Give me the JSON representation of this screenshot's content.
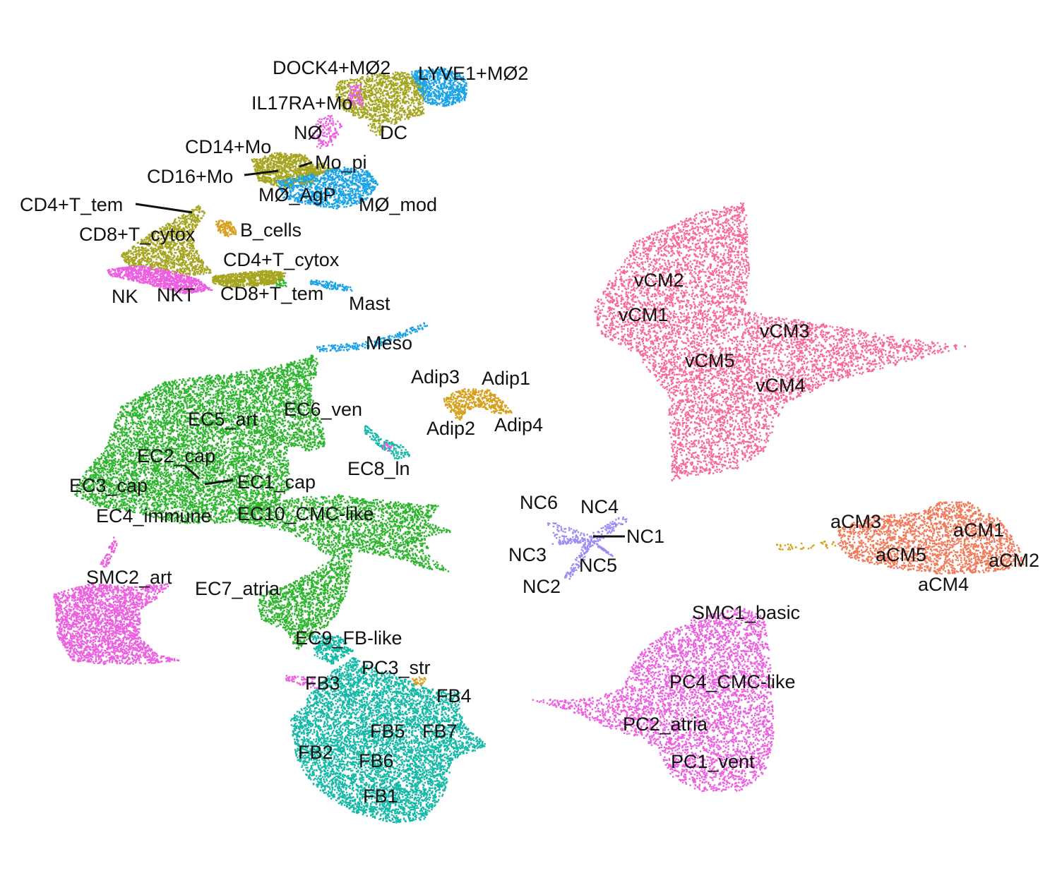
{
  "chart_data": {
    "type": "scatter",
    "title": "",
    "xlabel": "",
    "ylabel": "",
    "legend": "none",
    "axes": "hidden",
    "grid": false,
    "colors": {
      "pink": "#f8679a",
      "orange": "#f07a5a",
      "gold": "#d7a01c",
      "olive": "#a5a520",
      "green": "#2db52d",
      "teal": "#14b8a6",
      "blue": "#1aa3e6",
      "lavender": "#9d8cf2",
      "magenta": "#ec5fe0",
      "pinkmagenta": "#f064d6"
    },
    "clusters": [
      {
        "name": "vCM1",
        "color": "pink"
      },
      {
        "name": "vCM2",
        "color": "pink"
      },
      {
        "name": "vCM3",
        "color": "pink"
      },
      {
        "name": "vCM4",
        "color": "pink"
      },
      {
        "name": "vCM5",
        "color": "pink"
      },
      {
        "name": "aCM1",
        "color": "orange"
      },
      {
        "name": "aCM2",
        "color": "orange"
      },
      {
        "name": "aCM3",
        "color": "orange"
      },
      {
        "name": "aCM4",
        "color": "orange"
      },
      {
        "name": "aCM5",
        "color": "orange"
      },
      {
        "name": "Adip1",
        "color": "gold"
      },
      {
        "name": "Adip2",
        "color": "gold"
      },
      {
        "name": "Adip3",
        "color": "gold"
      },
      {
        "name": "Adip4",
        "color": "gold"
      },
      {
        "name": "NC1",
        "color": "lavender"
      },
      {
        "name": "NC2",
        "color": "lavender"
      },
      {
        "name": "NC3",
        "color": "lavender"
      },
      {
        "name": "NC4",
        "color": "lavender"
      },
      {
        "name": "NC5",
        "color": "lavender"
      },
      {
        "name": "NC6",
        "color": "lavender"
      },
      {
        "name": "SMC1_basic",
        "color": "magenta"
      },
      {
        "name": "PC1_vent",
        "color": "magenta"
      },
      {
        "name": "PC2_atria",
        "color": "magenta"
      },
      {
        "name": "PC3_str",
        "color": "gold"
      },
      {
        "name": "PC4_CMC-like",
        "color": "magenta"
      },
      {
        "name": "SMC2_art",
        "color": "magenta"
      },
      {
        "name": "FB1",
        "color": "teal"
      },
      {
        "name": "FB2",
        "color": "teal"
      },
      {
        "name": "FB3",
        "color": "teal"
      },
      {
        "name": "FB4",
        "color": "teal"
      },
      {
        "name": "FB5",
        "color": "teal"
      },
      {
        "name": "FB6",
        "color": "teal"
      },
      {
        "name": "FB7",
        "color": "teal"
      },
      {
        "name": "EC1_cap",
        "color": "green"
      },
      {
        "name": "EC2_cap",
        "color": "green"
      },
      {
        "name": "EC3_cap",
        "color": "green"
      },
      {
        "name": "EC4_immune",
        "color": "green"
      },
      {
        "name": "EC5_art",
        "color": "green"
      },
      {
        "name": "EC6_ven",
        "color": "green"
      },
      {
        "name": "EC7_atria",
        "color": "green"
      },
      {
        "name": "EC8_ln",
        "color": "teal"
      },
      {
        "name": "EC9_FB-like",
        "color": "teal"
      },
      {
        "name": "EC10_CMC-like",
        "color": "green"
      },
      {
        "name": "Meso",
        "color": "blue"
      },
      {
        "name": "Mast",
        "color": "blue"
      },
      {
        "name": "NK",
        "color": "magenta"
      },
      {
        "name": "NKT",
        "color": "magenta"
      },
      {
        "name": "CD8+T_tem",
        "color": "olive"
      },
      {
        "name": "CD4+T_cytox",
        "color": "olive"
      },
      {
        "name": "CD8+T_cytox",
        "color": "olive"
      },
      {
        "name": "CD4+T_tem",
        "color": "olive"
      },
      {
        "name": "B_cells",
        "color": "gold"
      },
      {
        "name": "MØ_AgP",
        "color": "blue"
      },
      {
        "name": "MØ_mod",
        "color": "blue"
      },
      {
        "name": "Mo_pi",
        "color": "olive"
      },
      {
        "name": "CD16+Mo",
        "color": "olive"
      },
      {
        "name": "CD14+Mo",
        "color": "olive"
      },
      {
        "name": "NØ",
        "color": "magenta"
      },
      {
        "name": "DC",
        "color": "olive"
      },
      {
        "name": "IL17RA+Mo",
        "color": "magenta"
      },
      {
        "name": "DOCK4+MØ2",
        "color": "olive"
      },
      {
        "name": "LYVE1+MØ2",
        "color": "blue"
      }
    ]
  }
}
